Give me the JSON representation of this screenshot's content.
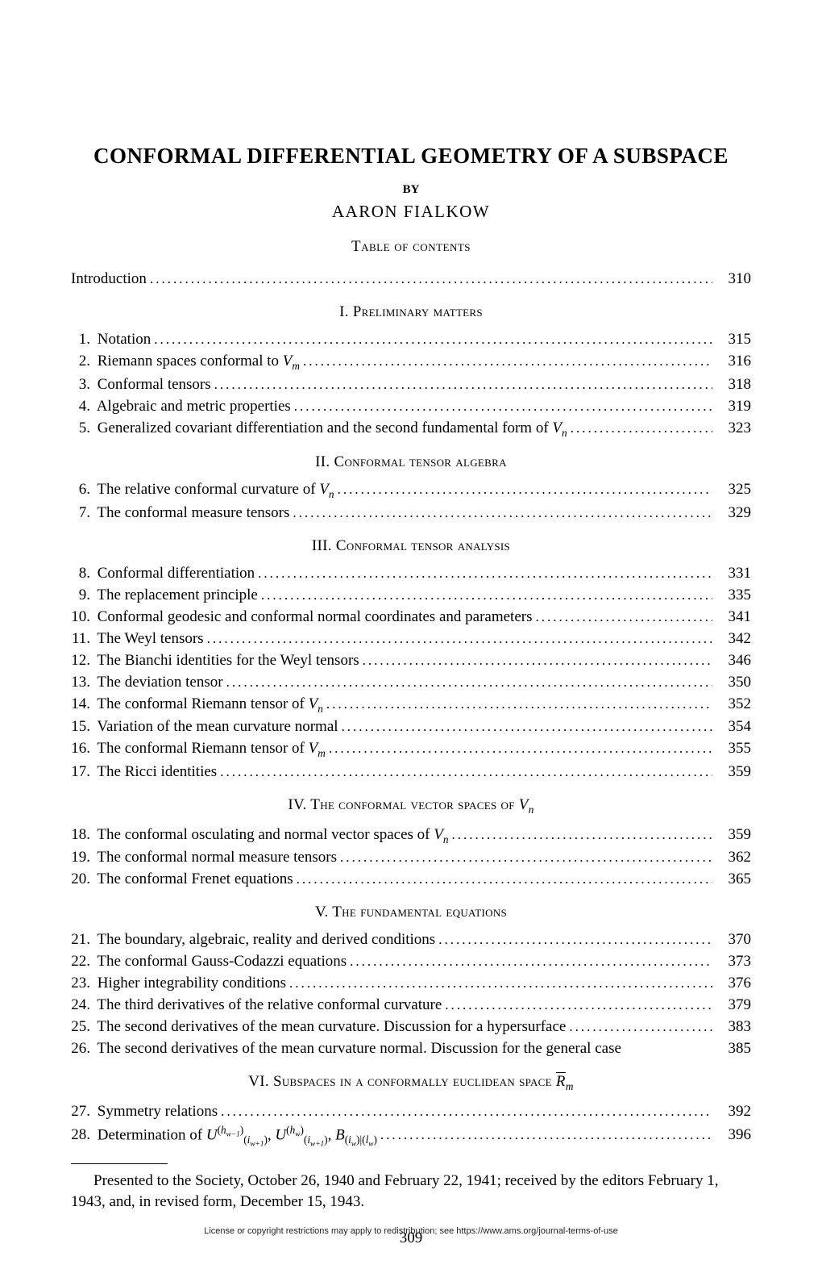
{
  "title": "CONFORMAL DIFFERENTIAL GEOMETRY OF A SUBSPACE",
  "by": "BY",
  "author": "AARON FIALKOW",
  "toc_title": "Table of contents",
  "intro": {
    "label": "Introduction",
    "page": "310"
  },
  "sections": [
    {
      "heading": "I. Preliminary matters",
      "items": [
        {
          "n": "1.",
          "text": "Notation",
          "page": "315"
        },
        {
          "n": "2.",
          "text": "Riemann spaces conformal to ",
          "suffix_ital": "V",
          "sub": "m",
          "page": "316"
        },
        {
          "n": "3.",
          "text": "Conformal tensors",
          "page": "318"
        },
        {
          "n": "4.",
          "text": "Algebraic and metric properties",
          "page": "319"
        },
        {
          "n": "5.",
          "text": "Generalized covariant differentiation and the second fundamental form of ",
          "suffix_ital": "V",
          "sub": "n",
          "page": "323"
        }
      ]
    },
    {
      "heading": "II. Conformal tensor algebra",
      "items": [
        {
          "n": "6.",
          "text": "The relative conformal curvature of ",
          "suffix_ital": "V",
          "sub": "n",
          "page": "325"
        },
        {
          "n": "7.",
          "text": "The conformal measure tensors",
          "page": "329"
        }
      ]
    },
    {
      "heading": "III. Conformal tensor analysis",
      "items": [
        {
          "n": "8.",
          "text": "Conformal differentiation",
          "page": "331"
        },
        {
          "n": "9.",
          "text": "The replacement principle",
          "page": "335"
        },
        {
          "n": "10.",
          "text": "Conformal geodesic and conformal normal coordinates and parameters",
          "page": "341"
        },
        {
          "n": "11.",
          "text": "The Weyl tensors",
          "page": "342"
        },
        {
          "n": "12.",
          "text": "The Bianchi identities for the Weyl tensors",
          "page": "346"
        },
        {
          "n": "13.",
          "text": "The deviation tensor",
          "page": "350"
        },
        {
          "n": "14.",
          "text": "The conformal Riemann tensor of ",
          "suffix_ital": "V",
          "sub": "n",
          "page": "352"
        },
        {
          "n": "15.",
          "text": "Variation of the mean curvature normal",
          "page": "354"
        },
        {
          "n": "16.",
          "text": "The conformal Riemann tensor of ",
          "suffix_ital": "V",
          "sub": "m",
          "page": "355"
        },
        {
          "n": "17.",
          "text": "The Ricci identities",
          "page": "359"
        }
      ]
    },
    {
      "heading_html": "IV. The conformal vector spaces of <span class=\"ital\">V<sub>n</sub></span>",
      "items": [
        {
          "n": "18.",
          "text": "The conformal osculating and normal vector spaces of ",
          "suffix_ital": "V",
          "sub": "n",
          "page": "359"
        },
        {
          "n": "19.",
          "text": "The conformal normal measure tensors",
          "page": "362"
        },
        {
          "n": "20.",
          "text": "The conformal Frenet equations",
          "page": "365"
        }
      ]
    },
    {
      "heading": "V. The fundamental equations",
      "items": [
        {
          "n": "21.",
          "text": "The boundary, algebraic, reality and derived conditions",
          "page": "370"
        },
        {
          "n": "22.",
          "text": "The conformal Gauss-Codazzi equations",
          "page": "373"
        },
        {
          "n": "23.",
          "text": "Higher integrability conditions",
          "page": "376"
        },
        {
          "n": "24.",
          "text": "The third derivatives of the relative conformal curvature",
          "page": "379"
        },
        {
          "n": "25.",
          "text": "The second derivatives of the mean curvature. Discussion for a hypersurface",
          "page": "383"
        },
        {
          "n": "26.",
          "text": "The second derivatives of the mean curvature normal. Discussion for the general case",
          "page": "385",
          "nodots": true
        }
      ]
    },
    {
      "heading_html": "VI. Subspaces in a conformally euclidean space <span class=\"over\">R</span><span class=\"ital\"><sub>m</sub></span>",
      "items": [
        {
          "n": "27.",
          "text": "Symmetry relations",
          "page": "392"
        },
        {
          "n": "28.",
          "html": "Determination of <span class=\"ital\">U</span><sup>(<span class=\"ital\">h<sub>w−1</sub></span>)</sup><sub>(<span class=\"ital\">i<sub>w+1</sub></span>)</sub>, <span class=\"ital\">U</span><sup>(<span class=\"ital\">h<sub>w</sub></span>)</sup><sub>(<span class=\"ital\">i<sub>w+1</sub></span>)</sub>, <span class=\"ital\">B</span><sub>(<span class=\"ital\">i<sub>w</sub></span>)|(<span class=\"ital\">l<sub>w</sub></span>)</sub>",
          "page": "396"
        }
      ]
    }
  ],
  "presented": "Presented to the Society, October 26, 1940 and February 22, 1941; received by the editors February 1, 1943, and, in revised form, December 15, 1943.",
  "license": "License or copyright restrictions may apply to redistribution; see https://www.ams.org/journal-terms-of-use",
  "page_number": "309"
}
